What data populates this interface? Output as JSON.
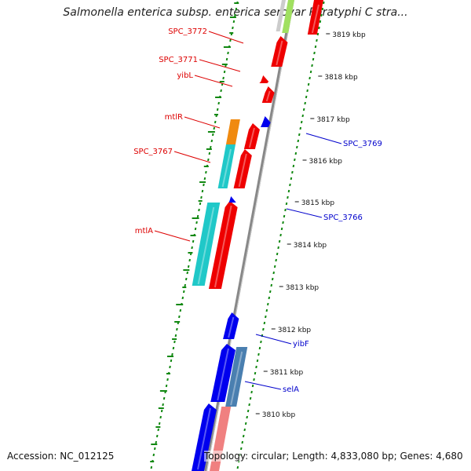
{
  "title": "Salmonella enterica subsp. enterica serovar Paratyphi C stra...",
  "footer": {
    "accession": "Accession: NC_012125",
    "stats": "Topology: circular; Length: 4,833,080 bp; Genes: 4,680"
  },
  "colors": {
    "forward_label": "#dd0000",
    "reverse_label": "#0000cc",
    "backbone": "#888888",
    "gc_ticks": "#118811"
  },
  "kbp_ticks": [
    "3819 kbp",
    "3818 kbp",
    "3817 kbp",
    "3816 kbp",
    "3815 kbp",
    "3814 kbp",
    "3813 kbp",
    "3812 kbp",
    "3811 kbp",
    "3810 kbp"
  ],
  "forward_genes": [
    {
      "label": "SPC_3772",
      "color": "#ee0000"
    },
    {
      "label": "SPC_3771",
      "color": "#ee0000"
    },
    {
      "label": "yibL",
      "color": "#ee0000"
    },
    {
      "label": "mtlR",
      "color": "#ee0000"
    },
    {
      "label": "SPC_3767",
      "color": "#ee0000"
    },
    {
      "label": "mtlA",
      "color": "#ee0000"
    }
  ],
  "reverse_genes": [
    {
      "label": "SPC_3769",
      "color": "#0000ee"
    },
    {
      "label": "SPC_3766",
      "color": "#0000ee"
    },
    {
      "label": "yibF",
      "color": "#0000ee"
    },
    {
      "label": "selA",
      "color": "#0000ee"
    }
  ],
  "cog_colors": {
    "cyan": "#20c8c8",
    "orange": "#f08a10",
    "steelblue": "#4a7fb0",
    "pink": "#f08080",
    "lightgreen": "#a0e060"
  }
}
